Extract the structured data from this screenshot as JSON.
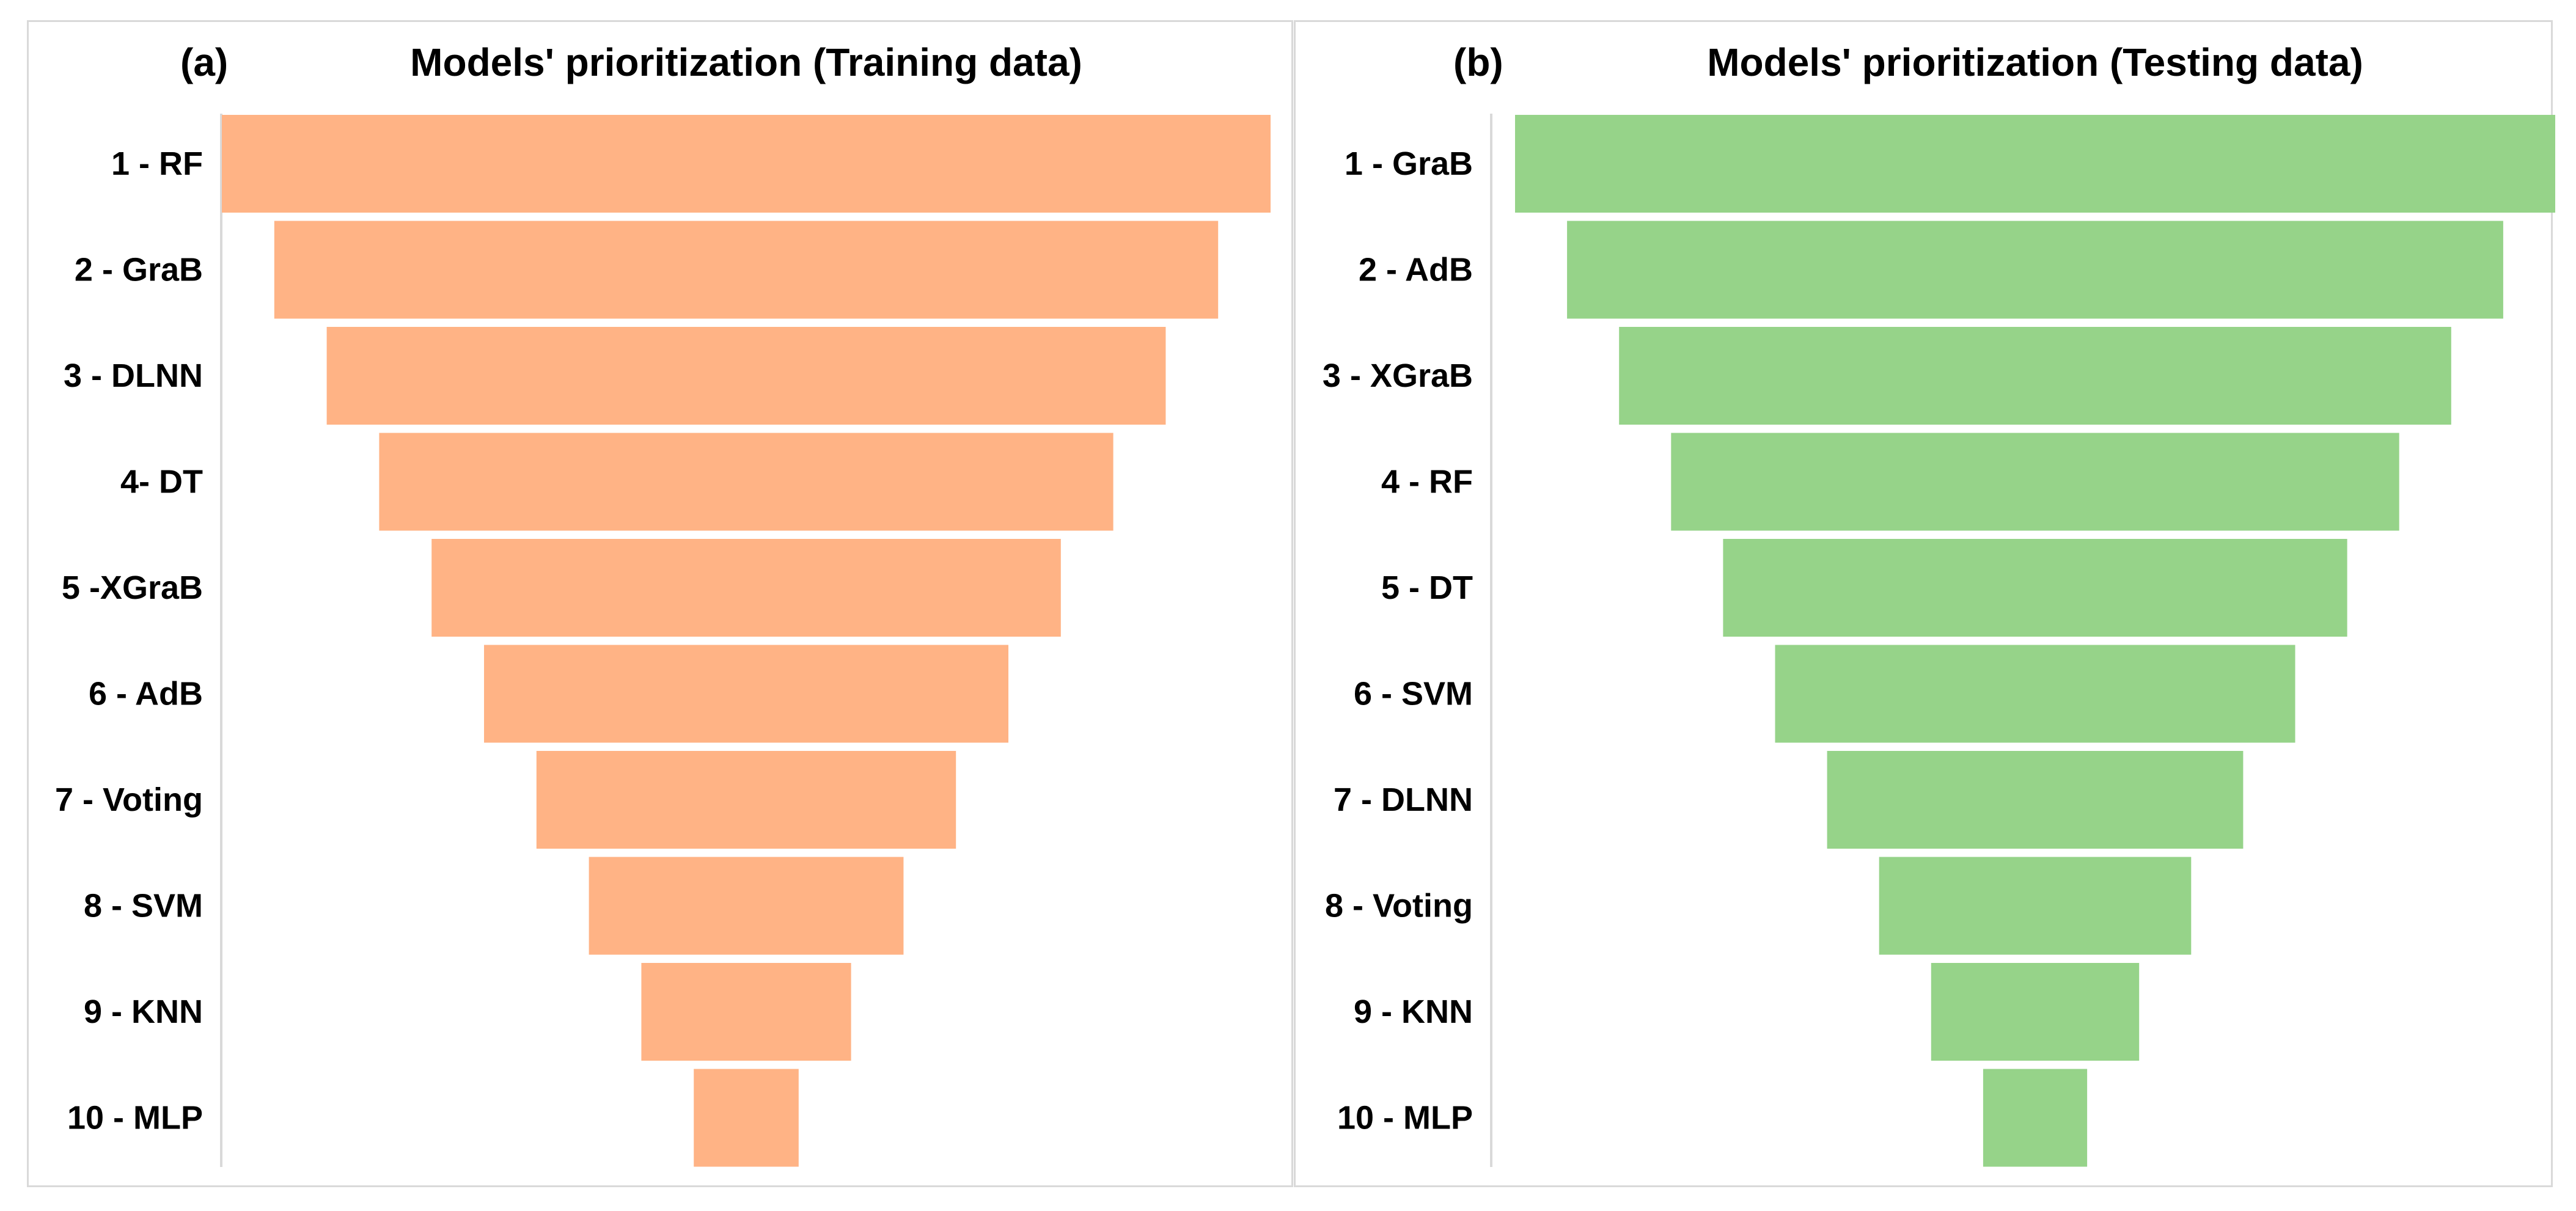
{
  "chart_data": [
    {
      "type": "bar",
      "panel_letter": "(a)",
      "title": "Models' prioritization  (Training data)",
      "categories": [
        "1 - RF",
        "2 - GraB",
        "3 - DLNN",
        "4- DT",
        "5 -XGraB",
        "6 - AdB",
        "7 - Voting",
        "8 - SVM",
        "9 - KNN",
        "10 - MLP"
      ],
      "values": [
        10,
        9,
        8,
        7,
        6,
        5,
        4,
        3,
        2,
        1
      ],
      "color": "#ffb385",
      "xlabel": "",
      "ylabel": "",
      "grid": false
    },
    {
      "type": "bar",
      "panel_letter": "(b)",
      "title": "Models' prioritization  (Testing data)",
      "categories": [
        "1 - GraB",
        "2 - AdB",
        "3 - XGraB",
        "4 - RF",
        "5 - DT",
        "6 - SVM",
        "7 - DLNN",
        "8 - Voting",
        "9 - KNN",
        "10 - MLP"
      ],
      "values": [
        10,
        9,
        8,
        7,
        6,
        5,
        4,
        3,
        2,
        1
      ],
      "color": "#96d389",
      "xlabel": "",
      "ylabel": "",
      "grid": false
    }
  ]
}
